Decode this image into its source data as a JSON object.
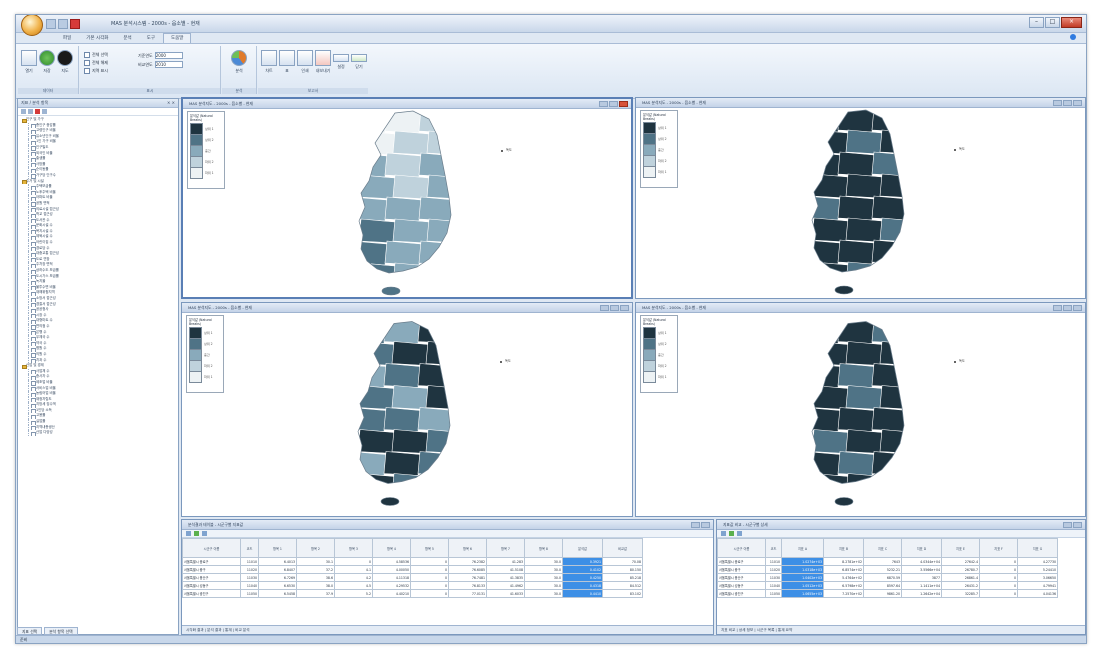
{
  "app": {
    "title": "MAS 분석시스템 - 2000s - 읍소별 - 현재",
    "tabs": [
      "파일",
      "기본 시각화",
      "분석",
      "도구",
      "도움말"
    ],
    "active_tab_index": 4
  },
  "ribbon": {
    "groups": [
      {
        "label": "데이터"
      },
      {
        "label": "표시"
      },
      {
        "label": "분석"
      },
      {
        "label": "보고서"
      }
    ],
    "checks": [
      "전체 선택",
      "전체 해제",
      "지역 표시"
    ],
    "fields": [
      {
        "label": "기준연도",
        "value": "2000"
      },
      {
        "label": "비교연도",
        "value": "2010"
      }
    ],
    "big_buttons": [
      "열기",
      "저장",
      "지도",
      "분석",
      "차트",
      "표",
      "인쇄",
      "내보내기",
      "설정",
      "닫기"
    ]
  },
  "left_panel": {
    "title": "지표 / 분석 항목",
    "tree": [
      {
        "kind": "folder",
        "label": "인구 및 가구"
      },
      {
        "kind": "leaf",
        "label": "총인구 증감률"
      },
      {
        "kind": "leaf",
        "label": "고령인구 비율"
      },
      {
        "kind": "leaf",
        "label": "유소년인구 비율"
      },
      {
        "kind": "leaf",
        "label": "1인 가구 비율"
      },
      {
        "kind": "leaf",
        "label": "인구밀도"
      },
      {
        "kind": "leaf",
        "label": "외국인 비율"
      },
      {
        "kind": "leaf",
        "label": "출생률"
      },
      {
        "kind": "leaf",
        "label": "사망률"
      },
      {
        "kind": "leaf",
        "label": "순이동률"
      },
      {
        "kind": "leaf",
        "label": "가구당 인구수"
      },
      {
        "kind": "folder",
        "label": "주거 및 시설"
      },
      {
        "kind": "leaf",
        "label": "주택보급률"
      },
      {
        "kind": "leaf",
        "label": "노후주택 비율"
      },
      {
        "kind": "leaf",
        "label": "아파트 비율"
      },
      {
        "kind": "leaf",
        "label": "공원 면적"
      },
      {
        "kind": "leaf",
        "label": "의료시설 접근성"
      },
      {
        "kind": "leaf",
        "label": "학교 접근성"
      },
      {
        "kind": "leaf",
        "label": "도서관 수"
      },
      {
        "kind": "leaf",
        "label": "문화시설 수"
      },
      {
        "kind": "leaf",
        "label": "복지시설 수"
      },
      {
        "kind": "leaf",
        "label": "체육시설 수"
      },
      {
        "kind": "leaf",
        "label": "어린이집 수"
      },
      {
        "kind": "leaf",
        "label": "경로당 수"
      },
      {
        "kind": "leaf",
        "label": "대중교통 접근성"
      },
      {
        "kind": "leaf",
        "label": "도로 연장"
      },
      {
        "kind": "leaf",
        "label": "주차장 면적"
      },
      {
        "kind": "leaf",
        "label": "상하수도 보급률"
      },
      {
        "kind": "leaf",
        "label": "도시가스 보급률"
      },
      {
        "kind": "leaf",
        "label": "녹지율"
      },
      {
        "kind": "leaf",
        "label": "불투수면 비율"
      },
      {
        "kind": "leaf",
        "label": "재해위험지역"
      },
      {
        "kind": "leaf",
        "label": "소방서 접근성"
      },
      {
        "kind": "leaf",
        "label": "경찰서 접근성"
      },
      {
        "kind": "leaf",
        "label": "공공청사"
      },
      {
        "kind": "leaf",
        "label": "시장 수"
      },
      {
        "kind": "leaf",
        "label": "대형마트 수"
      },
      {
        "kind": "leaf",
        "label": "편의점 수"
      },
      {
        "kind": "leaf",
        "label": "은행 수"
      },
      {
        "kind": "leaf",
        "label": "우체국 수"
      },
      {
        "kind": "leaf",
        "label": "약국 수"
      },
      {
        "kind": "leaf",
        "label": "병원 수"
      },
      {
        "kind": "leaf",
        "label": "의원 수"
      },
      {
        "kind": "leaf",
        "label": "치과 수"
      },
      {
        "kind": "folder",
        "label": "산업 및 경제"
      },
      {
        "kind": "leaf",
        "label": "사업체 수"
      },
      {
        "kind": "leaf",
        "label": "종사자 수"
      },
      {
        "kind": "leaf",
        "label": "제조업 비율"
      },
      {
        "kind": "leaf",
        "label": "서비스업 비율"
      },
      {
        "kind": "leaf",
        "label": "농림어업 비율"
      },
      {
        "kind": "leaf",
        "label": "재정자립도"
      },
      {
        "kind": "leaf",
        "label": "지방세 징수액"
      },
      {
        "kind": "leaf",
        "label": "1인당 소득"
      },
      {
        "kind": "leaf",
        "label": "고용률"
      },
      {
        "kind": "leaf",
        "label": "실업률"
      },
      {
        "kind": "leaf",
        "label": "지역내총생산"
      },
      {
        "kind": "leaf",
        "label": "산업 다양성"
      }
    ],
    "bottom_tabs": [
      "지표 선택",
      "분석 항목 선택"
    ]
  },
  "status": "준비",
  "map_windows": [
    {
      "title": "MAS 분석지도 - 2000s - 읍소별 - 현재"
    },
    {
      "title": "MAS 분석지도 - 2000s - 읍소별 - 현재"
    },
    {
      "title": "MAS 분석지도 - 2000s - 읍소별 - 현재"
    },
    {
      "title": "MAS 분석지도 - 2000s - 읍소별 - 현재"
    }
  ],
  "legend": {
    "title": "분석값 (Natural Breaks)",
    "classes": [
      {
        "label": "상위 1",
        "color": "#1f3440"
      },
      {
        "label": "상위 2",
        "color": "#4f7386"
      },
      {
        "label": "중간",
        "color": "#89aabb"
      },
      {
        "label": "하위 2",
        "color": "#bfd2dc"
      },
      {
        "label": "하위 1",
        "color": "#edf2f4"
      }
    ]
  },
  "sea_label": "독도",
  "grid_left": {
    "title": "분석결과 테이블 - 시군구별 지표값",
    "headers": [
      "시군구 이름",
      "코드",
      "항목 1",
      "항목 2",
      "항목 3",
      "항목 4",
      "항목 5",
      "항목 6",
      "항목 7",
      "항목 8",
      "분석값",
      "비교값"
    ],
    "rows": [
      [
        "서울특별시 종로구",
        "11010",
        "6.4013",
        "30.1",
        "0",
        "4.58536",
        "0",
        "76.2382",
        "41.283",
        "30.0",
        "0.3921",
        "70.08"
      ],
      [
        "서울특별시 중구",
        "11020",
        "6.8407",
        "37.2",
        "4.1",
        "4.00050",
        "0",
        "76.6085",
        "41.5108",
        "30.0",
        "0.4102",
        "80.150"
      ],
      [
        "서울특별시 용산구",
        "11030",
        "6.7269",
        "38.6",
        "4.2",
        "4.11318",
        "0",
        "76.7481",
        "41.3835",
        "30.0",
        "0.4250",
        "85.218"
      ],
      [
        "서울특별시 성동구",
        "11040",
        "6.6530",
        "38.0",
        "4.5",
        "4.29532",
        "0",
        "76.8133",
        "41.4962",
        "30.0",
        "0.4318",
        "84.512"
      ],
      [
        "서울특별시 광진구",
        "11050",
        "6.5458",
        "37.9",
        "5.2",
        "4.40210",
        "0",
        "77.0131",
        "41.6033",
        "30.0",
        "0.4410",
        "83.102"
      ]
    ],
    "tabs": "시각화 결과 | 분석 결과 | 통계 | 비교 분석"
  },
  "grid_right": {
    "title": "지표값 비교 - 시군구별 상세",
    "headers": [
      "시군구 이름",
      "코드",
      "지표 A",
      "지표 B",
      "지표 C",
      "지표 D",
      "지표 E",
      "지표 F",
      "지표 G"
    ],
    "rows": [
      [
        "서울특별시 종로구",
        "11010",
        "1.0274e+03",
        "8.2781e+02",
        "7643",
        "4.0344e+04",
        "27642.4",
        "0",
        "4.27730"
      ],
      [
        "서울특별시 중구",
        "11020",
        "1.0318e+03",
        "6.8574e+02",
        "5232.21",
        "3.5566e+04",
        "26780.7",
        "0",
        "5.24410"
      ],
      [
        "서울특별시 용산구",
        "11030",
        "1.0402e+03",
        "5.4764e+02",
        "6870.59",
        "3877",
        "26861.4",
        "0",
        "3.06650"
      ],
      [
        "서울특별시 성동구",
        "11040",
        "1.0512e+03",
        "6.5798e+02",
        "8597.64",
        "1.1411e+04",
        "26431.2",
        "0",
        "4.79941"
      ],
      [
        "서울특별시 광진구",
        "11050",
        "1.0655e+03",
        "7.2570e+02",
        "9861.20",
        "1.2642e+04",
        "32285.7",
        "0",
        "4.04136"
      ]
    ],
    "tabs": "지표 비교 | 상세 정보 | 시군구 목록 | 통계 요약"
  }
}
